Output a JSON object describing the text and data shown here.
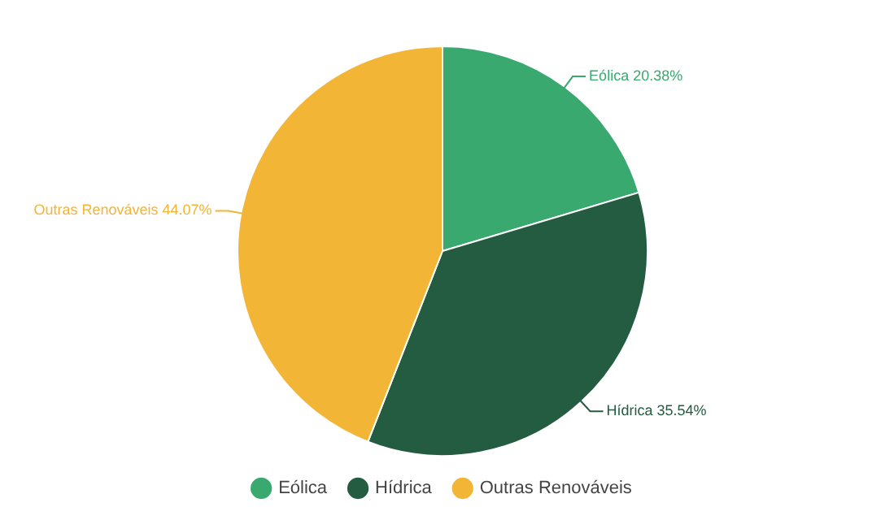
{
  "chart_data": {
    "type": "pie",
    "categories": [
      "Eólica",
      "Hídrica",
      "Outras Renováveis"
    ],
    "values": [
      20.38,
      35.54,
      44.07
    ],
    "colors": [
      "#3aa96f",
      "#235c40",
      "#f2b535"
    ],
    "value_labels": [
      "Eólica 20.38%",
      "Hídrica 35.54%",
      "Outras Renováveis 44.07%"
    ],
    "legend": "bottom"
  }
}
